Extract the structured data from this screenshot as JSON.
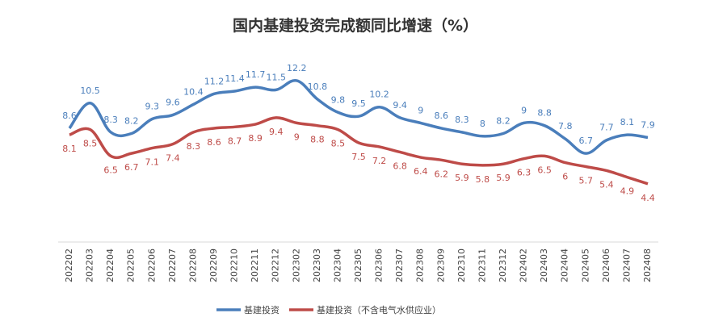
{
  "chart_data": {
    "type": "line",
    "title": "国内基建投资完成额同比增速（%）",
    "categories": [
      "202202",
      "202203",
      "202204",
      "202205",
      "202206",
      "202207",
      "202208",
      "202209",
      "202210",
      "202211",
      "202212",
      "202302",
      "202303",
      "202304",
      "202305",
      "202306",
      "202307",
      "202308",
      "202309",
      "202310",
      "202311",
      "202312",
      "202402",
      "202403",
      "202404",
      "202405",
      "202406",
      "202407",
      "202408"
    ],
    "series": [
      {
        "name": "基建投资",
        "color": "#4a7ebb",
        "values": [
          8.6,
          10.5,
          8.3,
          8.2,
          9.3,
          9.6,
          10.4,
          11.2,
          11.4,
          11.7,
          11.5,
          12.2,
          10.8,
          9.8,
          9.5,
          10.2,
          9.4,
          9.0,
          8.6,
          8.3,
          8.0,
          8.2,
          9.0,
          8.8,
          7.8,
          6.7,
          7.7,
          8.1,
          7.9
        ]
      },
      {
        "name": "基建投资（不含电气水供应业）",
        "color": "#be4b48",
        "values": [
          8.1,
          8.5,
          6.5,
          6.7,
          7.1,
          7.4,
          8.3,
          8.6,
          8.7,
          8.9,
          9.4,
          9.0,
          8.8,
          8.5,
          7.5,
          7.2,
          6.8,
          6.4,
          6.2,
          5.9,
          5.8,
          5.9,
          6.3,
          6.5,
          6.0,
          5.7,
          5.4,
          4.9,
          4.4
        ]
      }
    ],
    "legend": "bottom"
  }
}
